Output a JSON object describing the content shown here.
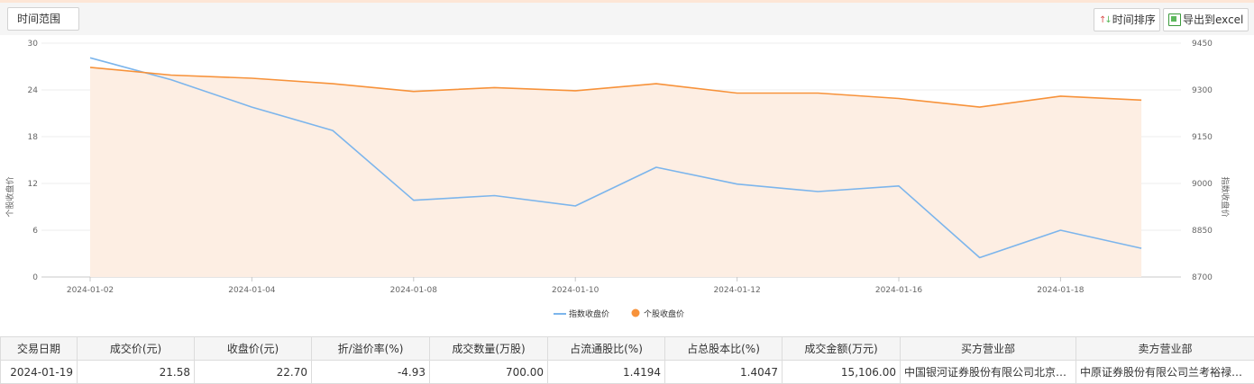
{
  "toolbar": {
    "range_label": "时间范围",
    "sort_label": "时间排序",
    "excel_label": "导出到excel"
  },
  "chart_data": {
    "type": "line",
    "x": [
      "2024-01-02",
      "2024-01-03",
      "2024-01-04",
      "2024-01-05",
      "2024-01-08",
      "2024-01-09",
      "2024-01-10",
      "2024-01-11",
      "2024-01-12",
      "2024-01-15",
      "2024-01-16",
      "2024-01-17",
      "2024-01-18",
      "2024-01-19"
    ],
    "xticks": [
      "2024-01-02",
      "2024-01-04",
      "2024-01-08",
      "2024-01-10",
      "2024-01-12",
      "2024-01-16",
      "2024-01-18"
    ],
    "series": [
      {
        "name": "指数收盘价",
        "axis": "right",
        "color": "#7cb5ec",
        "values": [
          9403,
          9333,
          9245,
          9170,
          8946,
          8961,
          8928,
          9052,
          8998,
          8974,
          8992,
          8762,
          8850,
          8792
        ]
      },
      {
        "name": "个股收盘价",
        "axis": "left",
        "color": "#f7923a",
        "fill": "#fdeee3",
        "values": [
          26.9,
          25.9,
          25.5,
          24.8,
          23.8,
          24.3,
          23.9,
          24.8,
          23.6,
          23.6,
          22.9,
          21.8,
          23.2,
          22.7
        ]
      }
    ],
    "ylabel_left": "个股收盘价",
    "ylabel_right": "指数收盘价",
    "ylim_left": [
      0,
      30
    ],
    "yticks_left": [
      0,
      6,
      12,
      18,
      24,
      30
    ],
    "ylim_right": [
      8700,
      9450
    ],
    "yticks_right": [
      8700,
      8850,
      9000,
      9150,
      9300,
      9450
    ],
    "grid": true,
    "legend": "bottom-center"
  },
  "table": {
    "headers": [
      "交易日期",
      "成交价(元)",
      "收盘价(元)",
      "折/溢价率(%)",
      "成交数量(万股)",
      "占流通股比(%)",
      "占总股本比(%)",
      "成交金额(万元)",
      "买方营业部",
      "卖方营业部"
    ],
    "rows": [
      [
        "2024-01-19",
        "21.58",
        "22.70",
        "-4.93",
        "700.00",
        "1.4194",
        "1.4047",
        "15,106.00",
        "中国银河证券股份有限公司北京…",
        "中原证券股份有限公司兰考裕禄…"
      ]
    ]
  }
}
